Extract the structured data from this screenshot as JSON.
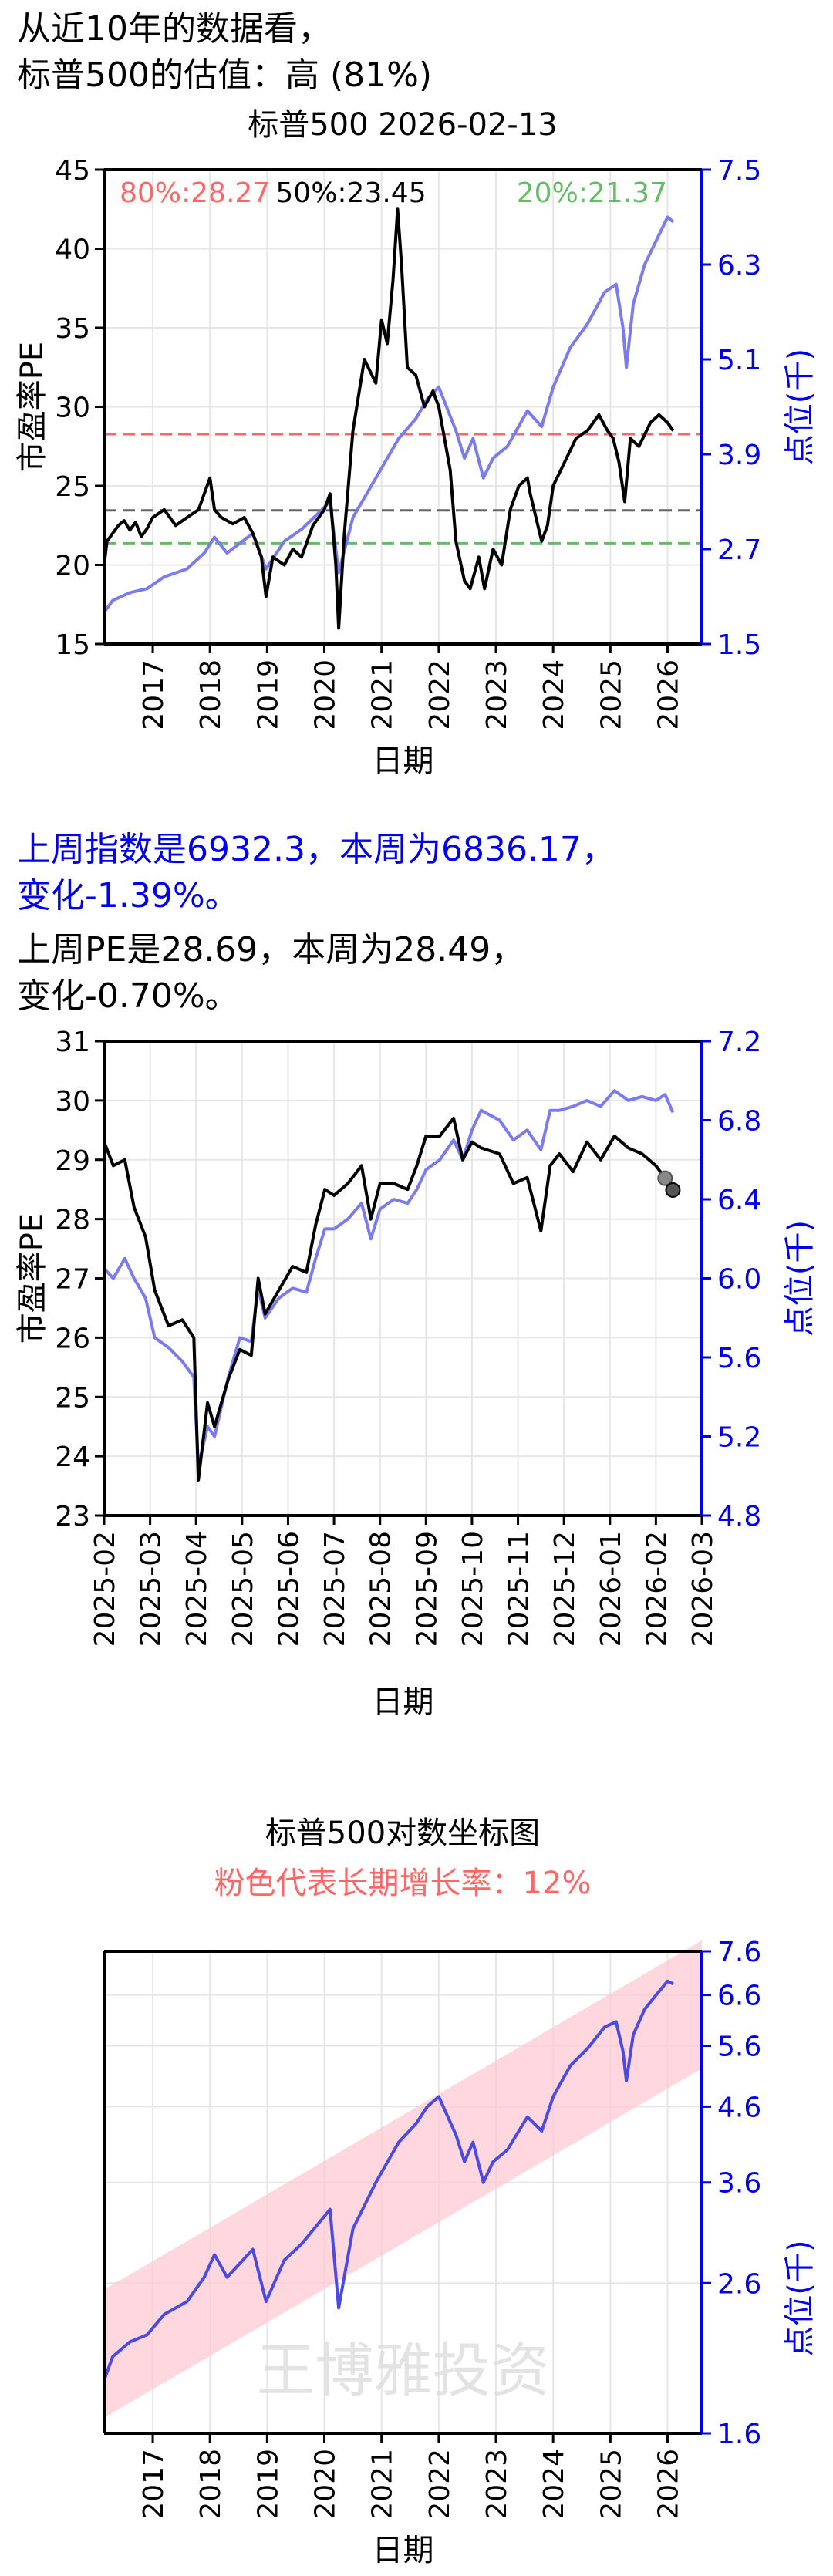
{
  "header": {
    "line1": "从近10年的数据看，",
    "line2": "标普500的估值：高 (81%)"
  },
  "summary": {
    "index_line1": "上周指数是6932.3，本周为6836.17，",
    "index_line2": "变化-1.39%。",
    "pe_line1": "上周PE是28.69，本周为28.49，",
    "pe_line2": "变化-0.70%。"
  },
  "watermark": "王博雅投资",
  "colors": {
    "pe": "#000000",
    "index": "#7b7bf0",
    "index_log": "#4a4ae6",
    "p80": "#ff6666",
    "p50": "#666666",
    "p20": "#66bb66",
    "axis_right": "#0000ee",
    "band": "#ffc8d2",
    "highlight_text": "#0000ee",
    "subtitle": "#ff6666"
  },
  "chart_data": [
    {
      "type": "line",
      "title": "标普500  2026-02-13",
      "xlabel": "日期",
      "ylabel": "市盈率PE",
      "ylabel_right": "点位(千)",
      "ylim": [
        15,
        45
      ],
      "ylim_right": [
        1.5,
        7.5
      ],
      "xlim": [
        2016.15,
        2026.6
      ],
      "grid": true,
      "x_ticks": [
        "2017",
        "2018",
        "2019",
        "2020",
        "2021",
        "2022",
        "2023",
        "2024",
        "2025",
        "2026"
      ],
      "y_ticks": [
        "15",
        "20",
        "25",
        "30",
        "35",
        "40",
        "45"
      ],
      "y_ticks_right": [
        "1.5",
        "2.7",
        "3.9",
        "5.1",
        "6.3",
        "7.5"
      ],
      "percentile_labels": [
        "80%:28.27",
        "50%:23.45",
        "20%:21.37"
      ],
      "percentiles": [
        28.27,
        23.45,
        21.37
      ],
      "series": [
        {
          "axis": "left",
          "x": [
            2016.15,
            2016.2,
            2016.3,
            2016.4,
            2016.5,
            2016.6,
            2016.7,
            2016.8,
            2016.9,
            2017.0,
            2017.2,
            2017.4,
            2017.6,
            2017.8,
            2017.9,
            2018.0,
            2018.08,
            2018.2,
            2018.4,
            2018.6,
            2018.75,
            2018.9,
            2018.98,
            2019.1,
            2019.3,
            2019.45,
            2019.6,
            2019.8,
            2020.0,
            2020.1,
            2020.2,
            2020.25,
            2020.35,
            2020.5,
            2020.7,
            2020.9,
            2021.0,
            2021.1,
            2021.2,
            2021.28,
            2021.35,
            2021.45,
            2021.6,
            2021.75,
            2021.9,
            2022.0,
            2022.2,
            2022.3,
            2022.45,
            2022.55,
            2022.7,
            2022.8,
            2022.95,
            2023.1,
            2023.25,
            2023.4,
            2023.55,
            2023.6,
            2023.8,
            2023.9,
            2024.0,
            2024.2,
            2024.4,
            2024.6,
            2024.8,
            2024.95,
            2025.05,
            2025.15,
            2025.25,
            2025.35,
            2025.5,
            2025.7,
            2025.85,
            2026.0,
            2026.1
          ],
          "values": [
            20.0,
            21.5,
            22.0,
            22.5,
            22.8,
            22.2,
            22.7,
            21.8,
            22.3,
            23.0,
            23.5,
            22.5,
            23.0,
            23.5,
            24.5,
            25.5,
            23.5,
            23.0,
            22.6,
            23.0,
            22.0,
            20.5,
            18.0,
            20.5,
            20.0,
            21.0,
            20.5,
            22.5,
            23.5,
            24.5,
            20.0,
            16.0,
            22.0,
            28.5,
            33.0,
            31.5,
            35.5,
            34.0,
            38.0,
            42.5,
            39.0,
            32.5,
            32.0,
            30.0,
            31.0,
            30.0,
            26.0,
            21.5,
            19.0,
            18.5,
            20.5,
            18.5,
            21.0,
            20.0,
            23.5,
            25.0,
            25.5,
            24.5,
            21.5,
            22.5,
            25.0,
            26.5,
            28.0,
            28.5,
            29.5,
            28.5,
            28.0,
            26.5,
            24.0,
            28.0,
            27.5,
            29.0,
            29.5,
            29.0,
            28.49
          ]
        },
        {
          "axis": "right",
          "x": [
            2016.15,
            2016.3,
            2016.6,
            2016.9,
            2017.2,
            2017.6,
            2017.9,
            2018.08,
            2018.3,
            2018.75,
            2018.98,
            2019.3,
            2019.6,
            2020.1,
            2020.25,
            2020.5,
            2020.9,
            2021.3,
            2021.6,
            2021.8,
            2022.0,
            2022.3,
            2022.45,
            2022.6,
            2022.78,
            2022.95,
            2023.2,
            2023.55,
            2023.8,
            2024.0,
            2024.3,
            2024.6,
            2024.9,
            2025.1,
            2025.22,
            2025.28,
            2025.4,
            2025.6,
            2025.8,
            2026.0,
            2026.1
          ],
          "values": [
            1.9,
            2.05,
            2.15,
            2.2,
            2.35,
            2.45,
            2.65,
            2.85,
            2.65,
            2.9,
            2.45,
            2.8,
            2.95,
            3.3,
            2.4,
            3.1,
            3.6,
            4.1,
            4.35,
            4.6,
            4.75,
            4.2,
            3.85,
            4.1,
            3.6,
            3.85,
            4.0,
            4.45,
            4.25,
            4.75,
            5.25,
            5.55,
            5.95,
            6.05,
            5.5,
            5.0,
            5.8,
            6.3,
            6.6,
            6.9,
            6.84
          ]
        }
      ]
    },
    {
      "type": "line",
      "xlabel": "日期",
      "ylabel": "市盈率PE",
      "ylabel_right": "点位(千)",
      "ylim": [
        23,
        31
      ],
      "ylim_right": [
        4.8,
        7.2
      ],
      "grid": true,
      "x_ticks": [
        "2025-02",
        "2025-03",
        "2025-04",
        "2025-05",
        "2025-06",
        "2025-07",
        "2025-08",
        "2025-09",
        "2025-10",
        "2025-11",
        "2025-12",
        "2026-01",
        "2026-02",
        "2026-03"
      ],
      "y_ticks": [
        "23",
        "24",
        "25",
        "26",
        "27",
        "28",
        "29",
        "30",
        "31"
      ],
      "y_ticks_right": [
        "4.8",
        "5.2",
        "5.6",
        "6.0",
        "6.4",
        "6.8",
        "7.2"
      ],
      "series": [
        {
          "axis": "left",
          "x": [
            0,
            0.2,
            0.45,
            0.65,
            0.9,
            1.1,
            1.4,
            1.7,
            1.95,
            2.05,
            2.25,
            2.4,
            2.7,
            2.95,
            3.2,
            3.35,
            3.5,
            3.8,
            4.1,
            4.4,
            4.6,
            4.8,
            5.0,
            5.3,
            5.6,
            5.8,
            6.0,
            6.3,
            6.6,
            6.8,
            7.0,
            7.3,
            7.6,
            7.8,
            8.0,
            8.2,
            8.6,
            8.9,
            9.2,
            9.5,
            9.7,
            9.9,
            10.2,
            10.5,
            10.8,
            11.1,
            11.4,
            11.7,
            12.0,
            12.2,
            12.37
          ],
          "values": [
            29.3,
            28.9,
            29.0,
            28.2,
            27.7,
            26.8,
            26.2,
            26.3,
            26.0,
            23.6,
            24.9,
            24.5,
            25.3,
            25.8,
            25.7,
            27.0,
            26.4,
            26.8,
            27.2,
            27.1,
            27.9,
            28.5,
            28.4,
            28.6,
            28.9,
            28.0,
            28.6,
            28.6,
            28.5,
            28.9,
            29.4,
            29.4,
            29.7,
            29.0,
            29.3,
            29.2,
            29.1,
            28.6,
            28.7,
            27.8,
            28.9,
            29.1,
            28.8,
            29.3,
            29.0,
            29.4,
            29.2,
            29.1,
            28.9,
            28.69,
            28.49
          ]
        },
        {
          "axis": "right",
          "x": [
            0,
            0.2,
            0.45,
            0.65,
            0.9,
            1.1,
            1.4,
            1.7,
            1.95,
            2.05,
            2.25,
            2.4,
            2.7,
            2.95,
            3.2,
            3.35,
            3.5,
            3.8,
            4.1,
            4.4,
            4.6,
            4.8,
            5.0,
            5.3,
            5.6,
            5.8,
            6.0,
            6.3,
            6.6,
            6.8,
            7.0,
            7.3,
            7.6,
            7.8,
            8.0,
            8.2,
            8.6,
            8.9,
            9.2,
            9.5,
            9.7,
            9.9,
            10.2,
            10.5,
            10.8,
            11.1,
            11.4,
            11.7,
            12.0,
            12.2,
            12.37
          ],
          "values": [
            6.05,
            6.0,
            6.1,
            6.0,
            5.9,
            5.7,
            5.65,
            5.58,
            5.5,
            5.05,
            5.25,
            5.2,
            5.5,
            5.7,
            5.68,
            5.95,
            5.8,
            5.9,
            5.95,
            5.93,
            6.1,
            6.25,
            6.25,
            6.3,
            6.38,
            6.2,
            6.35,
            6.4,
            6.38,
            6.45,
            6.55,
            6.6,
            6.7,
            6.6,
            6.75,
            6.85,
            6.8,
            6.7,
            6.75,
            6.65,
            6.85,
            6.85,
            6.87,
            6.9,
            6.87,
            6.95,
            6.9,
            6.92,
            6.9,
            6.93,
            6.84
          ]
        }
      ]
    },
    {
      "type": "line",
      "title": "标普500对数坐标图",
      "subtitle": "粉色代表长期增长率：12%",
      "xlabel": "日期",
      "ylabel_right": "点位(千)",
      "yscale": "log",
      "ylim_right": [
        1.6,
        7.6
      ],
      "xlim": [
        2016.15,
        2026.6
      ],
      "grid": true,
      "x_ticks": [
        "2017",
        "2018",
        "2019",
        "2020",
        "2021",
        "2022",
        "2023",
        "2024",
        "2025",
        "2026"
      ],
      "y_ticks_right": [
        "1.6",
        "2.6",
        "3.6",
        "4.6",
        "5.6",
        "6.6",
        "7.6"
      ],
      "growth_rate": 0.12,
      "band": {
        "x": [
          2016.15,
          2026.6
        ],
        "center": [
          2.07,
          6.4
        ],
        "width_log": 0.09
      },
      "series": [
        {
          "axis": "right",
          "x": [
            2016.15,
            2016.3,
            2016.6,
            2016.9,
            2017.2,
            2017.6,
            2017.9,
            2018.08,
            2018.3,
            2018.75,
            2018.98,
            2019.3,
            2019.6,
            2020.1,
            2020.25,
            2020.5,
            2020.9,
            2021.3,
            2021.6,
            2021.8,
            2022.0,
            2022.3,
            2022.45,
            2022.6,
            2022.78,
            2022.95,
            2023.2,
            2023.55,
            2023.8,
            2024.0,
            2024.3,
            2024.6,
            2024.9,
            2025.1,
            2025.22,
            2025.28,
            2025.4,
            2025.6,
            2025.8,
            2026.0,
            2026.1
          ],
          "values": [
            1.9,
            2.05,
            2.15,
            2.2,
            2.35,
            2.45,
            2.65,
            2.85,
            2.65,
            2.9,
            2.45,
            2.8,
            2.95,
            3.3,
            2.4,
            3.1,
            3.6,
            4.1,
            4.35,
            4.6,
            4.75,
            4.2,
            3.85,
            4.1,
            3.6,
            3.85,
            4.0,
            4.45,
            4.25,
            4.75,
            5.25,
            5.55,
            5.95,
            6.05,
            5.5,
            5.0,
            5.8,
            6.3,
            6.6,
            6.9,
            6.84
          ]
        }
      ]
    }
  ]
}
